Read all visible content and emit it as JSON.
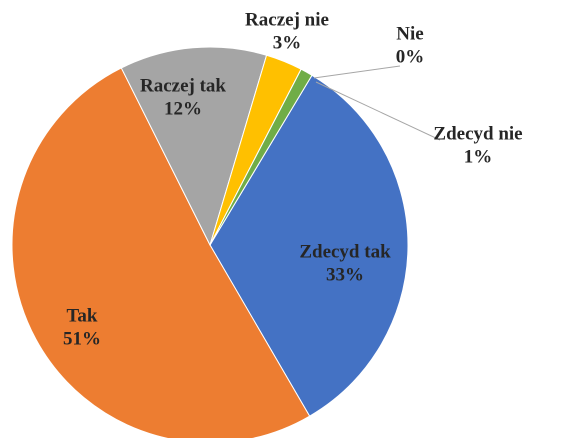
{
  "chart_data": {
    "type": "pie",
    "categories": [
      "Zdecyd tak",
      "Tak",
      "Raczej tak",
      "Raczej nie",
      "Nie",
      "Zdecyd nie"
    ],
    "values": [
      33,
      51,
      12,
      3,
      0,
      1
    ],
    "value_labels": [
      "33%",
      "51%",
      "12%",
      "3%",
      "0%",
      "1%"
    ],
    "colors": [
      "#4472c4",
      "#ed7d31",
      "#a5a5a5",
      "#ffc000",
      "#5b9bd5",
      "#70ad47"
    ]
  }
}
